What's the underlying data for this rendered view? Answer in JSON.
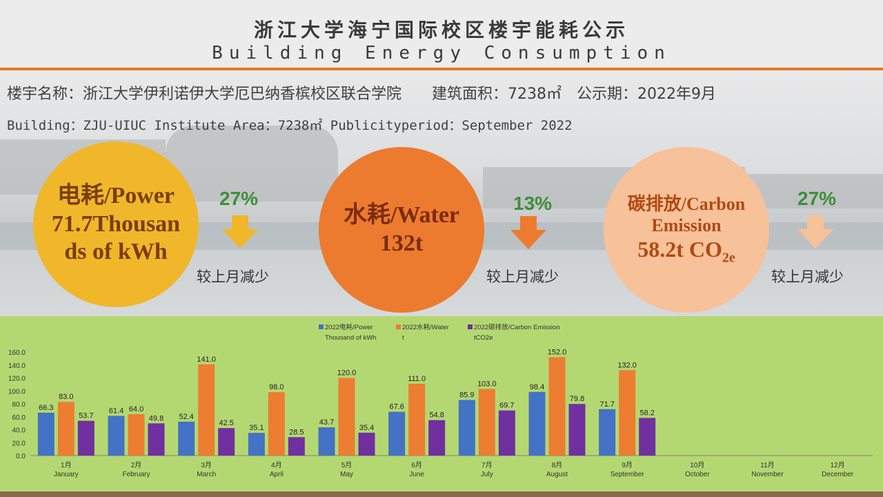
{
  "header": {
    "title_cn": "浙江大学海宁国际校区楼宇能耗公示",
    "title_en": "Building Energy Consumption"
  },
  "info": {
    "cn": "楼宇名称：浙江大学伊利诺伊大学厄巴纳香槟校区联合学院　　建筑面积：7238㎡　公示期：2022年9月",
    "en": "Building：ZJU-UIUC Institute                   Area：7238㎡     Publicityperiod：September 2022"
  },
  "power": {
    "line1": "电耗/Power",
    "line2": "71.7Thousan",
    "line3": "ds of kWh",
    "change": "27%",
    "change_label": "较上月减少"
  },
  "water": {
    "line1": "水耗/Water",
    "line2": "132t",
    "change": "13%",
    "change_label": "较上月减少"
  },
  "carbon": {
    "line1": "碳排放/Carbon",
    "line2": "Emission",
    "line3": "58.2t CO",
    "line3_sub": "2e",
    "change": "27%",
    "change_label": "较上月减少"
  },
  "colors": {
    "power": "#4472c4",
    "water": "#ed7d31",
    "carbon": "#7030a0",
    "arrow_power": "#f0b72b",
    "arrow_water": "#ec7b30",
    "arrow_carbon": "#f7c19a"
  },
  "icons": {
    "decrease": "arrow-down-icon"
  },
  "chart_data": {
    "type": "bar",
    "categories": [
      {
        "cn": "1月",
        "en": "January"
      },
      {
        "cn": "2月",
        "en": "February"
      },
      {
        "cn": "3月",
        "en": "March"
      },
      {
        "cn": "4月",
        "en": "April"
      },
      {
        "cn": "5月",
        "en": "May"
      },
      {
        "cn": "6月",
        "en": "June"
      },
      {
        "cn": "7月",
        "en": "July"
      },
      {
        "cn": "8月",
        "en": "August"
      },
      {
        "cn": "9月",
        "en": "September"
      },
      {
        "cn": "10月",
        "en": "October"
      },
      {
        "cn": "11月",
        "en": "November"
      },
      {
        "cn": "12月",
        "en": "December"
      }
    ],
    "series": [
      {
        "name": "2022电耗/Power",
        "name2": "Thousand of kWh",
        "color": "#4472c4",
        "values": [
          66.3,
          61.4,
          52.4,
          35.1,
          43.7,
          67.6,
          85.9,
          98.4,
          71.7,
          null,
          null,
          null
        ]
      },
      {
        "name": "2022水耗/Water",
        "name2": "t",
        "color": "#ed7d31",
        "values": [
          83.0,
          64.0,
          141.0,
          98.0,
          120.0,
          111.0,
          103.0,
          152.0,
          132.0,
          null,
          null,
          null
        ]
      },
      {
        "name": "2022碳排放/Carbon Emission",
        "name2": "tCO2e",
        "color": "#7030a0",
        "values": [
          53.7,
          49.8,
          42.5,
          28.5,
          35.4,
          54.8,
          69.7,
          79.8,
          58.2,
          null,
          null,
          null
        ]
      }
    ],
    "ylim": [
      0,
      160
    ],
    "yticks": [
      "0.0",
      "20.0",
      "40.0",
      "60.0",
      "80.0",
      "100.0",
      "120.0",
      "140.0",
      "160.0"
    ],
    "legend": "top-center",
    "grid": false
  }
}
